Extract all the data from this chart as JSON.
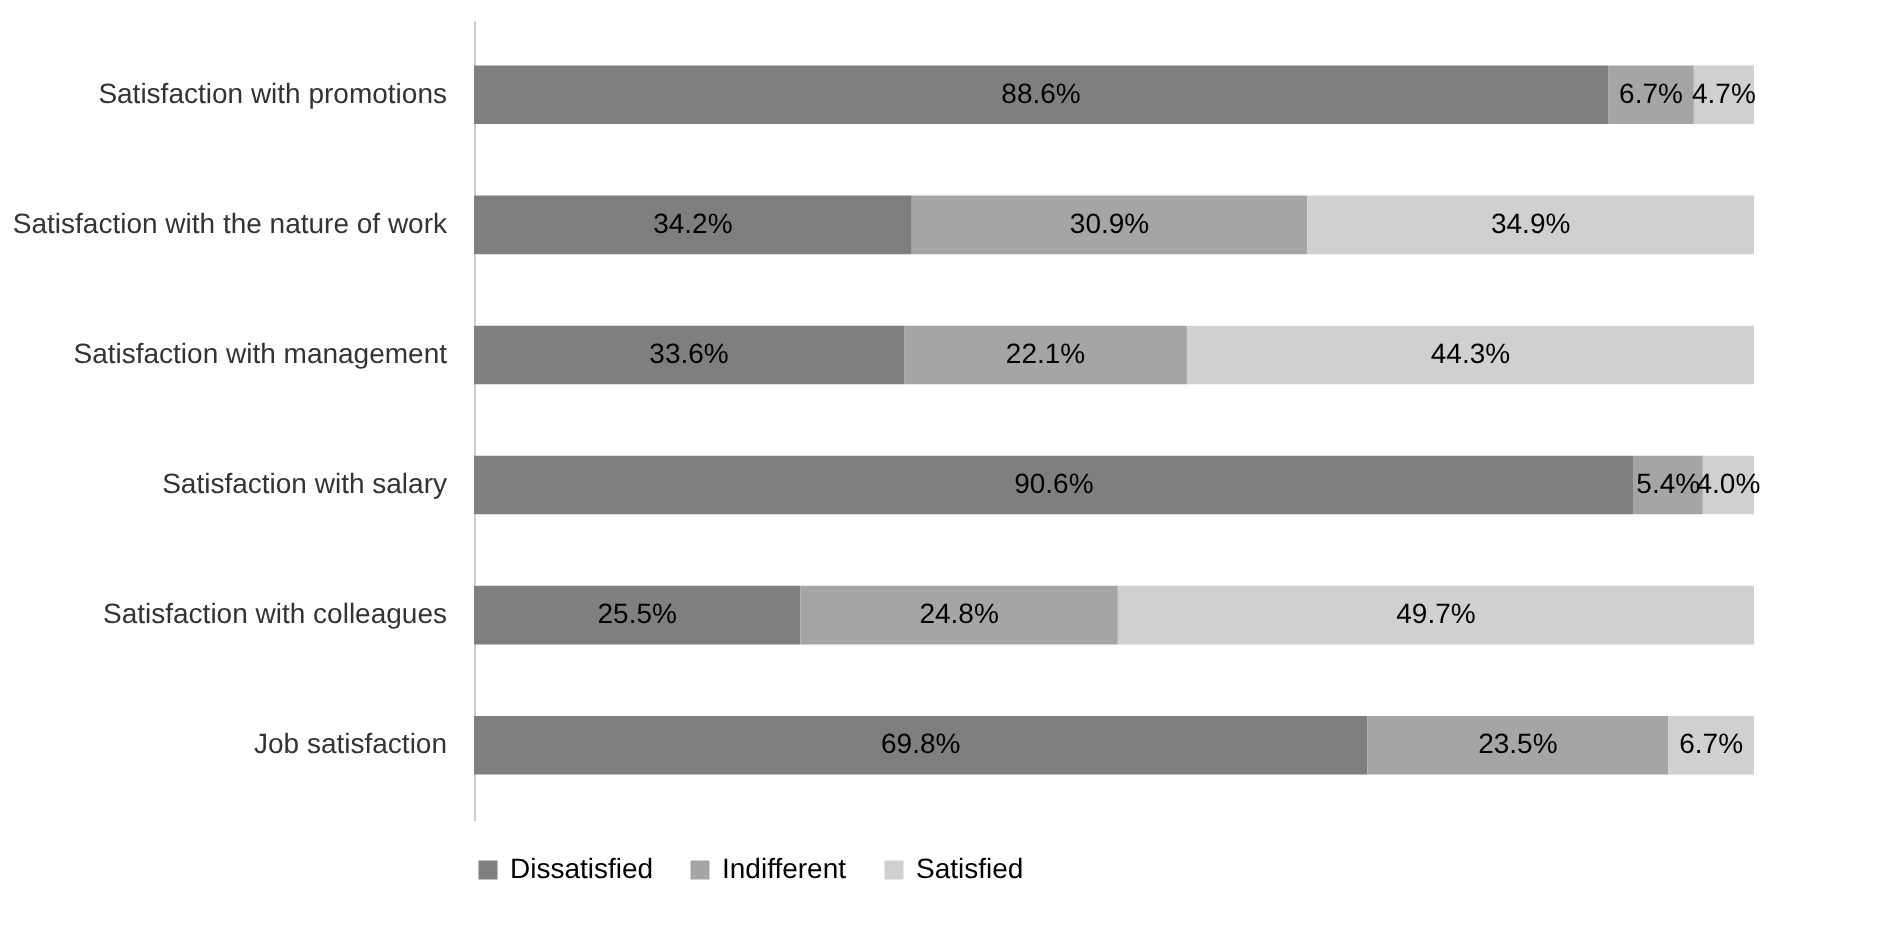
{
  "chart_data": {
    "type": "bar",
    "orientation": "horizontal",
    "stacked": true,
    "categories": [
      "Satisfaction with promotions",
      "Satisfaction with the nature of work",
      "Satisfaction with management",
      "Satisfaction with salary",
      "Satisfaction with colleagues",
      "Job satisfaction"
    ],
    "series": [
      {
        "name": "Dissatisfied",
        "color": "#7f7f7f",
        "values": [
          88.6,
          34.2,
          33.6,
          90.6,
          25.5,
          69.8
        ],
        "value_labels": [
          "88.6%",
          "34.2%",
          "33.6%",
          "90.6%",
          "25.5%",
          "69.8%"
        ]
      },
      {
        "name": "Indifferent",
        "color": "#a5a5a5",
        "values": [
          6.7,
          30.9,
          22.1,
          5.4,
          24.8,
          23.5
        ],
        "value_labels": [
          "6.7%",
          "30.9%",
          "22.1%",
          "5.4%",
          "24.8%",
          "23.5%"
        ]
      },
      {
        "name": "Satisfied",
        "color": "#d0d0d0",
        "values": [
          4.7,
          34.9,
          44.3,
          4.0,
          49.7,
          6.7
        ],
        "value_labels": [
          "4.7%",
          "34.9%",
          "44.3%",
          "4.0%",
          "49.7%",
          "6.7%"
        ]
      }
    ],
    "legend": "bottom"
  }
}
